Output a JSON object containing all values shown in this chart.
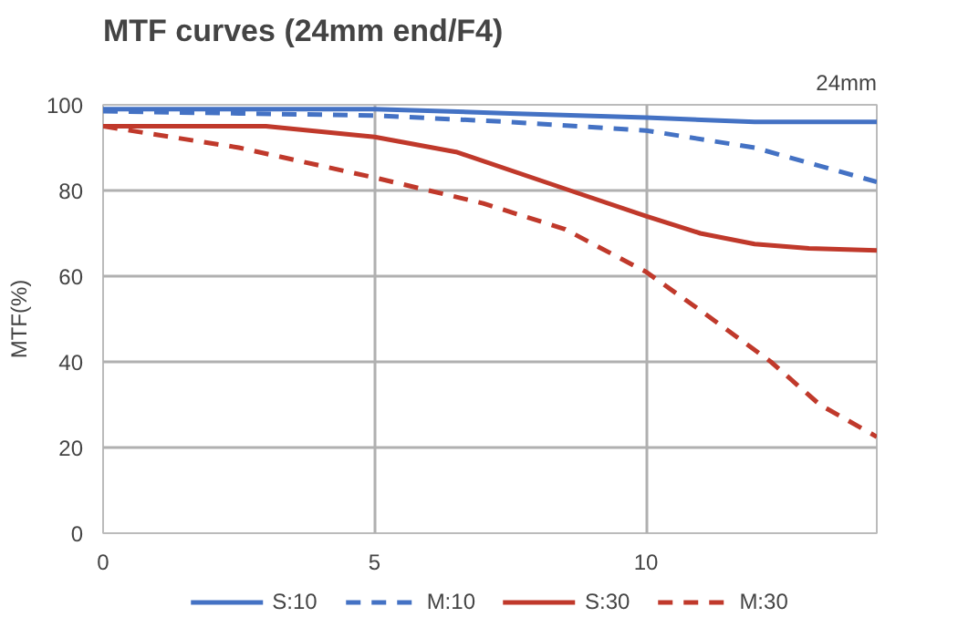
{
  "chart_data": {
    "type": "line",
    "title": "MTF curves (24mm end/F4)",
    "ylabel": "MTF(%)",
    "annotations": [
      "24mm"
    ],
    "xlim": [
      0,
      14.25
    ],
    "xticks": [
      0,
      5,
      10
    ],
    "ylim": [
      0,
      100
    ],
    "yticks": [
      0,
      20,
      40,
      60,
      80,
      100
    ],
    "grid": true,
    "legend": "bottom",
    "series": [
      {
        "name": "S:10",
        "color": "#4472c4",
        "line_style": "solid",
        "x": [
          0,
          2.5,
          5,
          7.5,
          10,
          12,
          14.25
        ],
        "values": [
          99,
          99,
          99,
          98,
          97,
          96,
          96
        ]
      },
      {
        "name": "M:10",
        "color": "#4472c4",
        "line_style": "dashed",
        "x": [
          0,
          2.5,
          5,
          7.5,
          10,
          12,
          14.25
        ],
        "values": [
          98.5,
          98,
          97.5,
          96,
          94,
          90,
          82
        ]
      },
      {
        "name": "S:30",
        "color": "#c0392b",
        "line_style": "solid",
        "x": [
          0,
          3,
          5,
          6.5,
          8.6,
          10,
          11,
          12,
          13,
          14.25
        ],
        "values": [
          95,
          95,
          92.5,
          89,
          80,
          74,
          70,
          67.5,
          66.5,
          66
        ]
      },
      {
        "name": "M:30",
        "color": "#c0392b",
        "line_style": "dashed",
        "x": [
          0,
          2.5,
          5,
          7,
          8.5,
          10,
          11,
          12.3,
          13.2,
          14.25
        ],
        "values": [
          95,
          90,
          83,
          77,
          71,
          61,
          52,
          40,
          30,
          22.5
        ]
      }
    ]
  }
}
